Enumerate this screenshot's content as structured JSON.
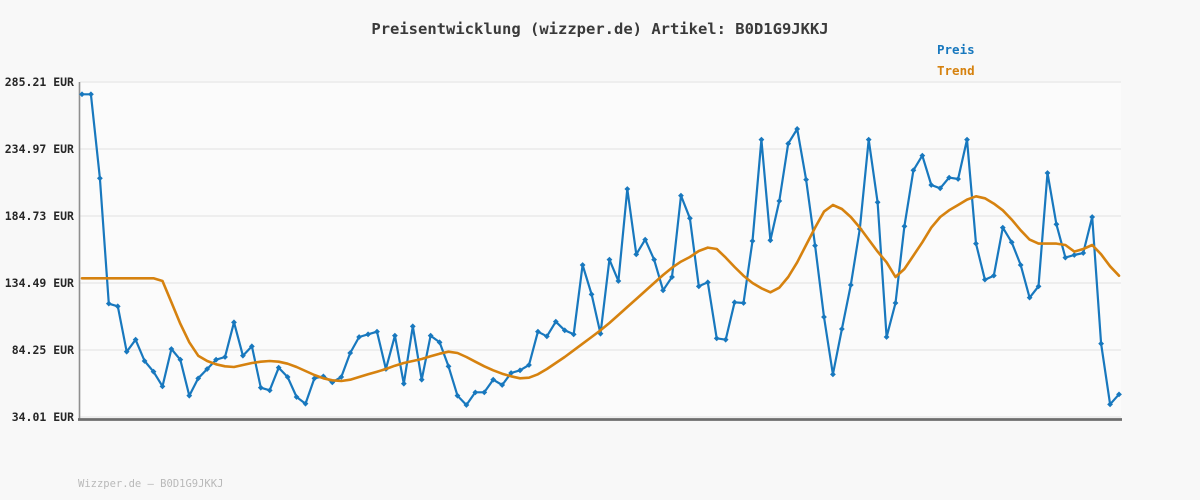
{
  "title": "Preisentwicklung (wizzper.de) Artikel: B0D1G9JKKJ",
  "footer": "Wizzper.de — B0D1G9JKKJ",
  "legend": [
    {
      "label": "Preis",
      "color": "#1878be"
    },
    {
      "label": "Trend",
      "color": "#d6820f"
    }
  ],
  "chart_data": {
    "type": "line",
    "title": "Preisentwicklung (wizzper.de) Artikel: B0D1G9JKKJ",
    "xlabel": "",
    "ylabel": "EUR",
    "x_axis": {
      "tick_labels_visible": false,
      "points": 117
    },
    "ylim": [
      34.01,
      285.21
    ],
    "y_tick_values": [
      285.21,
      234.97,
      184.73,
      134.49,
      84.25,
      34.01
    ],
    "y_ticks": [
      "285.21 EUR",
      "234.97 EUR",
      "184.73 EUR",
      "134.49 EUR",
      "84.25 EUR",
      "34.01 EUR"
    ],
    "grid": true,
    "plot_bg": "#fbfbfb",
    "grid_color": "#e7e7e7",
    "axis_color_left": "#8f8f8f",
    "axis_color_bottom": "#6e6e6e",
    "legend_position": "top-right",
    "series": [
      {
        "name": "Preis",
        "color": "#1878be",
        "marker": "diamond",
        "line_width": 2.2,
        "values": [
          276,
          276,
          213,
          119,
          117,
          83,
          92,
          76,
          68,
          57,
          85,
          77,
          50,
          63,
          70,
          77,
          79,
          105,
          80,
          87,
          56,
          54,
          71,
          64,
          49,
          44,
          63,
          64.5,
          60,
          64,
          82,
          94,
          96,
          98,
          70,
          95,
          59,
          102,
          62,
          95,
          90,
          72,
          50,
          43,
          52.5,
          52.5,
          62,
          58,
          67,
          69,
          73,
          98,
          94.5,
          105.5,
          99,
          96,
          148,
          126,
          96.5,
          152,
          136,
          205,
          156,
          167,
          152,
          129,
          139,
          200,
          183,
          132,
          135,
          93,
          92,
          120,
          119.5,
          166,
          242,
          166.5,
          196,
          239,
          250,
          212,
          162.5,
          109,
          66,
          100,
          133,
          175,
          242,
          195,
          94,
          119.5,
          177,
          219,
          230,
          208,
          205.5,
          213.5,
          212.5,
          242,
          164,
          137,
          140,
          176,
          165,
          148,
          123.5,
          132,
          217,
          178.5,
          153.5,
          155.5,
          157,
          184,
          89,
          43.5,
          51
        ]
      },
      {
        "name": "Trend",
        "color": "#d6820f",
        "marker": "none",
        "line_width": 2.6,
        "values": [
          138,
          138,
          138,
          138,
          138,
          138,
          138,
          138,
          138,
          136,
          120,
          104,
          90,
          80,
          76,
          73.5,
          72,
          71.5,
          73,
          74.5,
          75.5,
          76,
          75.5,
          74,
          71.5,
          68.5,
          65.5,
          63,
          61.5,
          61,
          62,
          64,
          66,
          68,
          70,
          72.5,
          74.5,
          76,
          77.5,
          79.5,
          81.5,
          83,
          82,
          79,
          75.5,
          72,
          69,
          66.5,
          64.5,
          63,
          63.5,
          66,
          70,
          74.5,
          79,
          84,
          89,
          94,
          99,
          104.5,
          110.5,
          116.5,
          122.5,
          128.5,
          134.5,
          140.5,
          146,
          150.5,
          154,
          158.5,
          161,
          160,
          153.5,
          146.5,
          140,
          134.5,
          130.5,
          127.5,
          131,
          139,
          150,
          163,
          176,
          188,
          193,
          190,
          184,
          176,
          167,
          158,
          150,
          139,
          145,
          155,
          165,
          176,
          184,
          189,
          193,
          197,
          199.5,
          198,
          194,
          189,
          182,
          174,
          167,
          164,
          164,
          164,
          163,
          158,
          160,
          163,
          156,
          147,
          140
        ]
      }
    ]
  }
}
